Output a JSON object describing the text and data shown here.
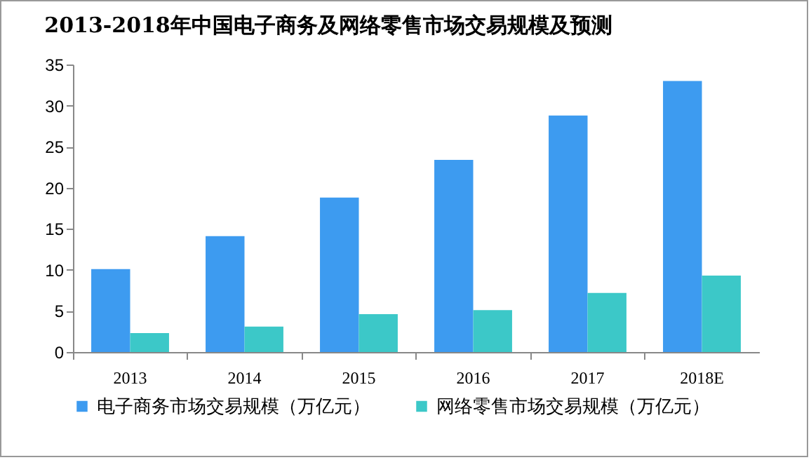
{
  "chart_data": {
    "type": "bar",
    "title": "2013-2018年中国电子商务及网络零售市场交易规模及预测",
    "categories": [
      "2013",
      "2014",
      "2015",
      "2016",
      "2017",
      "2018E"
    ],
    "series": [
      {
        "name": "电子商务市场交易规模（万亿元）",
        "color": "#3d9bf0",
        "values": [
          10.1,
          14.1,
          18.8,
          23.4,
          28.8,
          33.0
        ]
      },
      {
        "name": "网络零售市场交易规模（万亿元）",
        "color": "#3cc8c8",
        "values": [
          2.3,
          3.1,
          4.6,
          5.1,
          7.2,
          9.3
        ]
      }
    ],
    "ylim": [
      0,
      35
    ],
    "yticks": [
      0,
      5,
      10,
      15,
      20,
      25,
      30,
      35
    ],
    "grid": false,
    "legend": "bottom"
  }
}
